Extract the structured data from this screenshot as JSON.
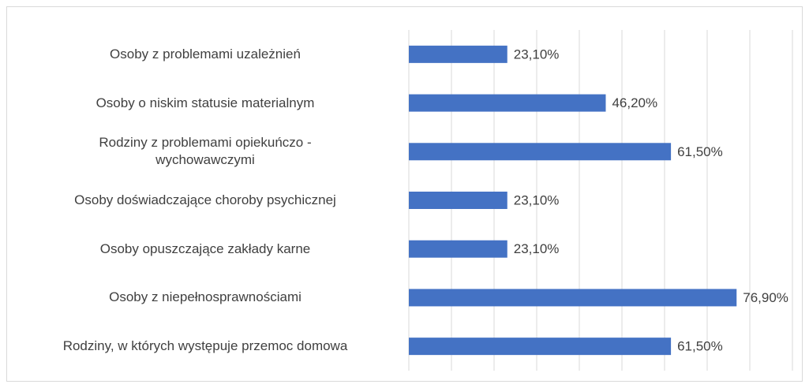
{
  "chart_data": {
    "type": "barh",
    "categories": [
      "Osoby z problemami uzależnień",
      "Osoby o niskim statusie materialnym",
      "Rodziny z problemami opiekuńczo -\nwychowawczymi",
      "Osoby doświadczające choroby psychicznej",
      "Osoby opuszczające zakłady karne",
      "Osoby z niepełnosprawnościami",
      "Rodziny, w których występuje przemoc domowa"
    ],
    "values": [
      23.1,
      46.2,
      61.5,
      23.1,
      23.1,
      76.9,
      61.5
    ],
    "value_labels": [
      "23,10%",
      "46,20%",
      "61,50%",
      "23,10%",
      "23,10%",
      "76,90%",
      "61,50%"
    ],
    "color": "#4472c4",
    "xlim": [
      0,
      90
    ],
    "xticks": [
      0,
      10,
      20,
      30,
      40,
      50,
      60,
      70,
      80,
      90
    ],
    "grid": true
  }
}
